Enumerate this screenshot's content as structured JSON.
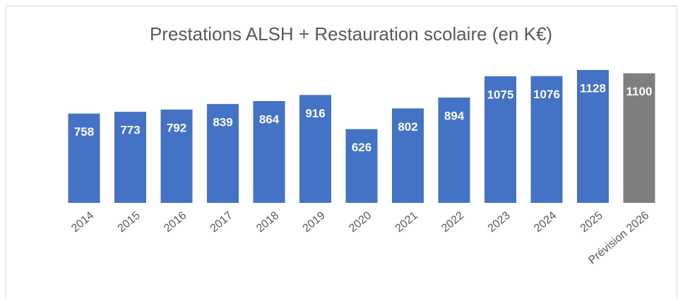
{
  "chart_data": {
    "type": "bar",
    "title": "Prestations ALSH + Restauration scolaire (en K€)",
    "categories": [
      "2014",
      "2015",
      "2016",
      "2017",
      "2018",
      "2019",
      "2020",
      "2021",
      "2022",
      "2023",
      "2024",
      "2025",
      "Prévision 2026"
    ],
    "values": [
      758,
      773,
      792,
      839,
      864,
      916,
      626,
      802,
      894,
      1075,
      1076,
      1128,
      1100
    ],
    "colors": [
      "#4472c4",
      "#4472c4",
      "#4472c4",
      "#4472c4",
      "#4472c4",
      "#4472c4",
      "#4472c4",
      "#4472c4",
      "#4472c4",
      "#4472c4",
      "#4472c4",
      "#4472c4",
      "#7f7f7f"
    ],
    "ylim": [
      0,
      1200
    ]
  }
}
